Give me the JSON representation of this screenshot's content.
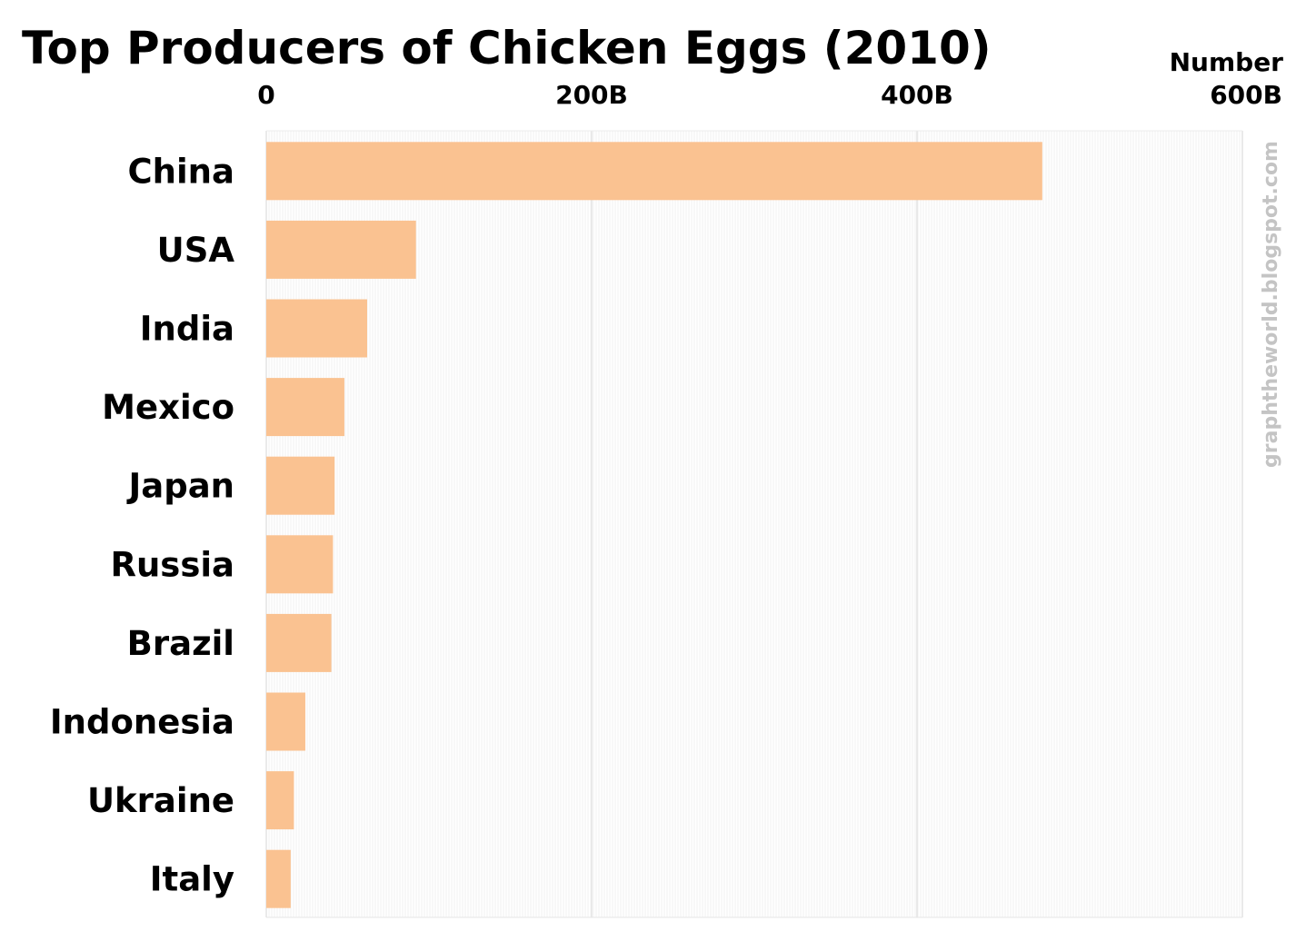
{
  "chart_data": {
    "type": "bar",
    "orientation": "horizontal",
    "title": "Top Producers of Chicken Eggs (2010)",
    "unit_label": "Number",
    "categories": [
      "China",
      "USA",
      "India",
      "Mexico",
      "Japan",
      "Russia",
      "Brazil",
      "Indonesia",
      "Ukraine",
      "Italy"
    ],
    "values": [
      477,
      92,
      62,
      48,
      42,
      41,
      40,
      24,
      17,
      15
    ],
    "value_unit": "billions",
    "xlim": [
      0,
      600
    ],
    "ticks": [
      {
        "value": 0,
        "label": "0"
      },
      {
        "value": 200,
        "label": "200B"
      },
      {
        "value": 400,
        "label": "400B"
      },
      {
        "value": 600,
        "label": "600B"
      }
    ],
    "tick_position": "top",
    "grid": true,
    "legend": "none",
    "bar_color": "#fac291",
    "grid_color": "#e4e4e4",
    "credit": "graphtheworld.blogspot.com",
    "credit_color": "#c4c4c4"
  }
}
